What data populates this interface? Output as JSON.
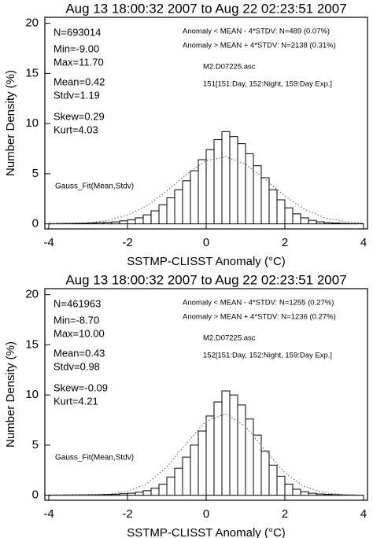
{
  "chart_data": [
    {
      "type": "histogram",
      "title": "Aug 13 18:00:32 2007  to  Aug 22 02:23:51 2007",
      "x_label": "SSTMP-CLISST Anomaly (°C)",
      "y_label": "Number Density (%)",
      "bins": [
        -4,
        -3.8,
        -3.6,
        -3.4,
        -3.2,
        -3,
        -2.8,
        -2.6,
        -2.4,
        -2.2,
        -2,
        -1.8,
        -1.6,
        -1.4,
        -1.2,
        -1,
        -0.8,
        -0.6,
        -0.4,
        -0.2,
        0,
        0.2,
        0.4,
        0.6,
        0.8,
        1,
        1.2,
        1.4,
        1.6,
        1.8,
        2,
        2.2,
        2.4,
        2.6,
        2.8,
        3,
        3.2,
        3.4,
        3.6,
        3.8,
        4
      ],
      "values": [
        0.03,
        0.04,
        0.05,
        0.06,
        0.07,
        0.1,
        0.12,
        0.15,
        0.2,
        0.3,
        0.4,
        0.6,
        0.9,
        1.3,
        1.9,
        2.6,
        3.4,
        4.3,
        5.3,
        6.4,
        7.4,
        8.4,
        9.2,
        8.7,
        8.0,
        7.0,
        5.8,
        4.6,
        3.4,
        2.4,
        1.6,
        1.0,
        0.6,
        0.35,
        0.2,
        0.12,
        0.08,
        0.05,
        0.03,
        0.02
      ],
      "fit": {
        "label": "Gauss_Fit(Mean,Stdv)",
        "x": [
          -4,
          -3.5,
          -3,
          -2.5,
          -2,
          -1.5,
          -1,
          -0.5,
          0,
          0.5,
          1,
          1.5,
          2,
          2.5,
          3,
          3.5,
          4
        ],
        "values": [
          0.007,
          0.03,
          0.11,
          0.33,
          0.85,
          1.83,
          3.29,
          4.97,
          6.3,
          6.69,
          5.95,
          4.44,
          2.77,
          1.45,
          0.64,
          0.24,
          0.07
        ]
      },
      "stats": [
        "N=693014",
        "Min=-9.00",
        "Max=11.70",
        "Mean=0.42",
        "Stdv=1.19",
        "Skew=0.29",
        "Kurt=4.03"
      ],
      "notes": [
        "Anomaly < MEAN - 4*STDV: N=489 (0.07%)",
        "Anomaly > MEAN + 4*STDV: N=2138 (0.31%)",
        "M2.D07225.asc",
        "151[151:Day, 152:Night, 159:Day Exp.]"
      ],
      "xlim": [
        -4.1,
        4.1
      ],
      "xticks": [
        -4,
        -2,
        0,
        2,
        4
      ],
      "ylim": [
        -0.5,
        20.6
      ],
      "yticks": [
        0,
        5,
        10,
        15,
        20
      ]
    },
    {
      "type": "histogram",
      "title": "Aug 13 18:00:32 2007  to  Aug 22 02:23:51 2007",
      "x_label": "SSTMP-CLISST Anomaly (°C)",
      "y_label": "Number Density (%)",
      "bins": [
        -4,
        -3.8,
        -3.6,
        -3.4,
        -3.2,
        -3,
        -2.8,
        -2.6,
        -2.4,
        -2.2,
        -2,
        -1.8,
        -1.6,
        -1.4,
        -1.2,
        -1,
        -0.8,
        -0.6,
        -0.4,
        -0.2,
        0,
        0.2,
        0.4,
        0.6,
        0.8,
        1,
        1.2,
        1.4,
        1.6,
        1.8,
        2,
        2.2,
        2.4,
        2.6,
        2.8,
        3,
        3.2,
        3.4,
        3.6,
        3.8,
        4
      ],
      "values": [
        0.02,
        0.02,
        0.03,
        0.03,
        0.04,
        0.05,
        0.06,
        0.08,
        0.1,
        0.15,
        0.2,
        0.3,
        0.45,
        0.7,
        1.1,
        1.8,
        2.7,
        3.8,
        5.0,
        6.4,
        7.9,
        9.3,
        10.4,
        10.0,
        9.0,
        7.6,
        6.0,
        4.4,
        3.0,
        1.9,
        1.1,
        0.6,
        0.35,
        0.2,
        0.12,
        0.08,
        0.05,
        0.03,
        0.02,
        0.01
      ],
      "fit": {
        "label": "Gauss_Fit(Mean,Stdv)",
        "x": [
          -4,
          -3.5,
          -3,
          -2.5,
          -2,
          -1.5,
          -1,
          -0.5,
          0,
          0.5,
          1,
          1.5,
          2,
          2.5,
          3,
          3.5,
          4
        ],
        "values": [
          0,
          0.003,
          0.018,
          0.09,
          0.38,
          1.17,
          2.81,
          5.19,
          7.39,
          8.12,
          6.87,
          4.48,
          2.25,
          0.87,
          0.26,
          0.06,
          0.01
        ]
      },
      "stats": [
        "N=461963",
        "Min=-8.70",
        "Max=10.00",
        "Mean=0.43",
        "Stdv=0.98",
        "Skew=-0.09",
        "Kurt=4.21"
      ],
      "notes": [
        "Anomaly < MEAN - 4*STDV: N=1255 (0.27%)",
        "Anomaly > MEAN + 4*STDV: N=1236 (0.27%)",
        "M2.D07225.asc",
        "152[151:Day, 152:Night, 159:Day Exp.]"
      ],
      "xlim": [
        -4.1,
        4.1
      ],
      "xticks": [
        -4,
        -2,
        0,
        2,
        4
      ],
      "ylim": [
        -0.5,
        20.6
      ],
      "yticks": [
        0,
        5,
        10,
        15,
        20
      ]
    }
  ]
}
